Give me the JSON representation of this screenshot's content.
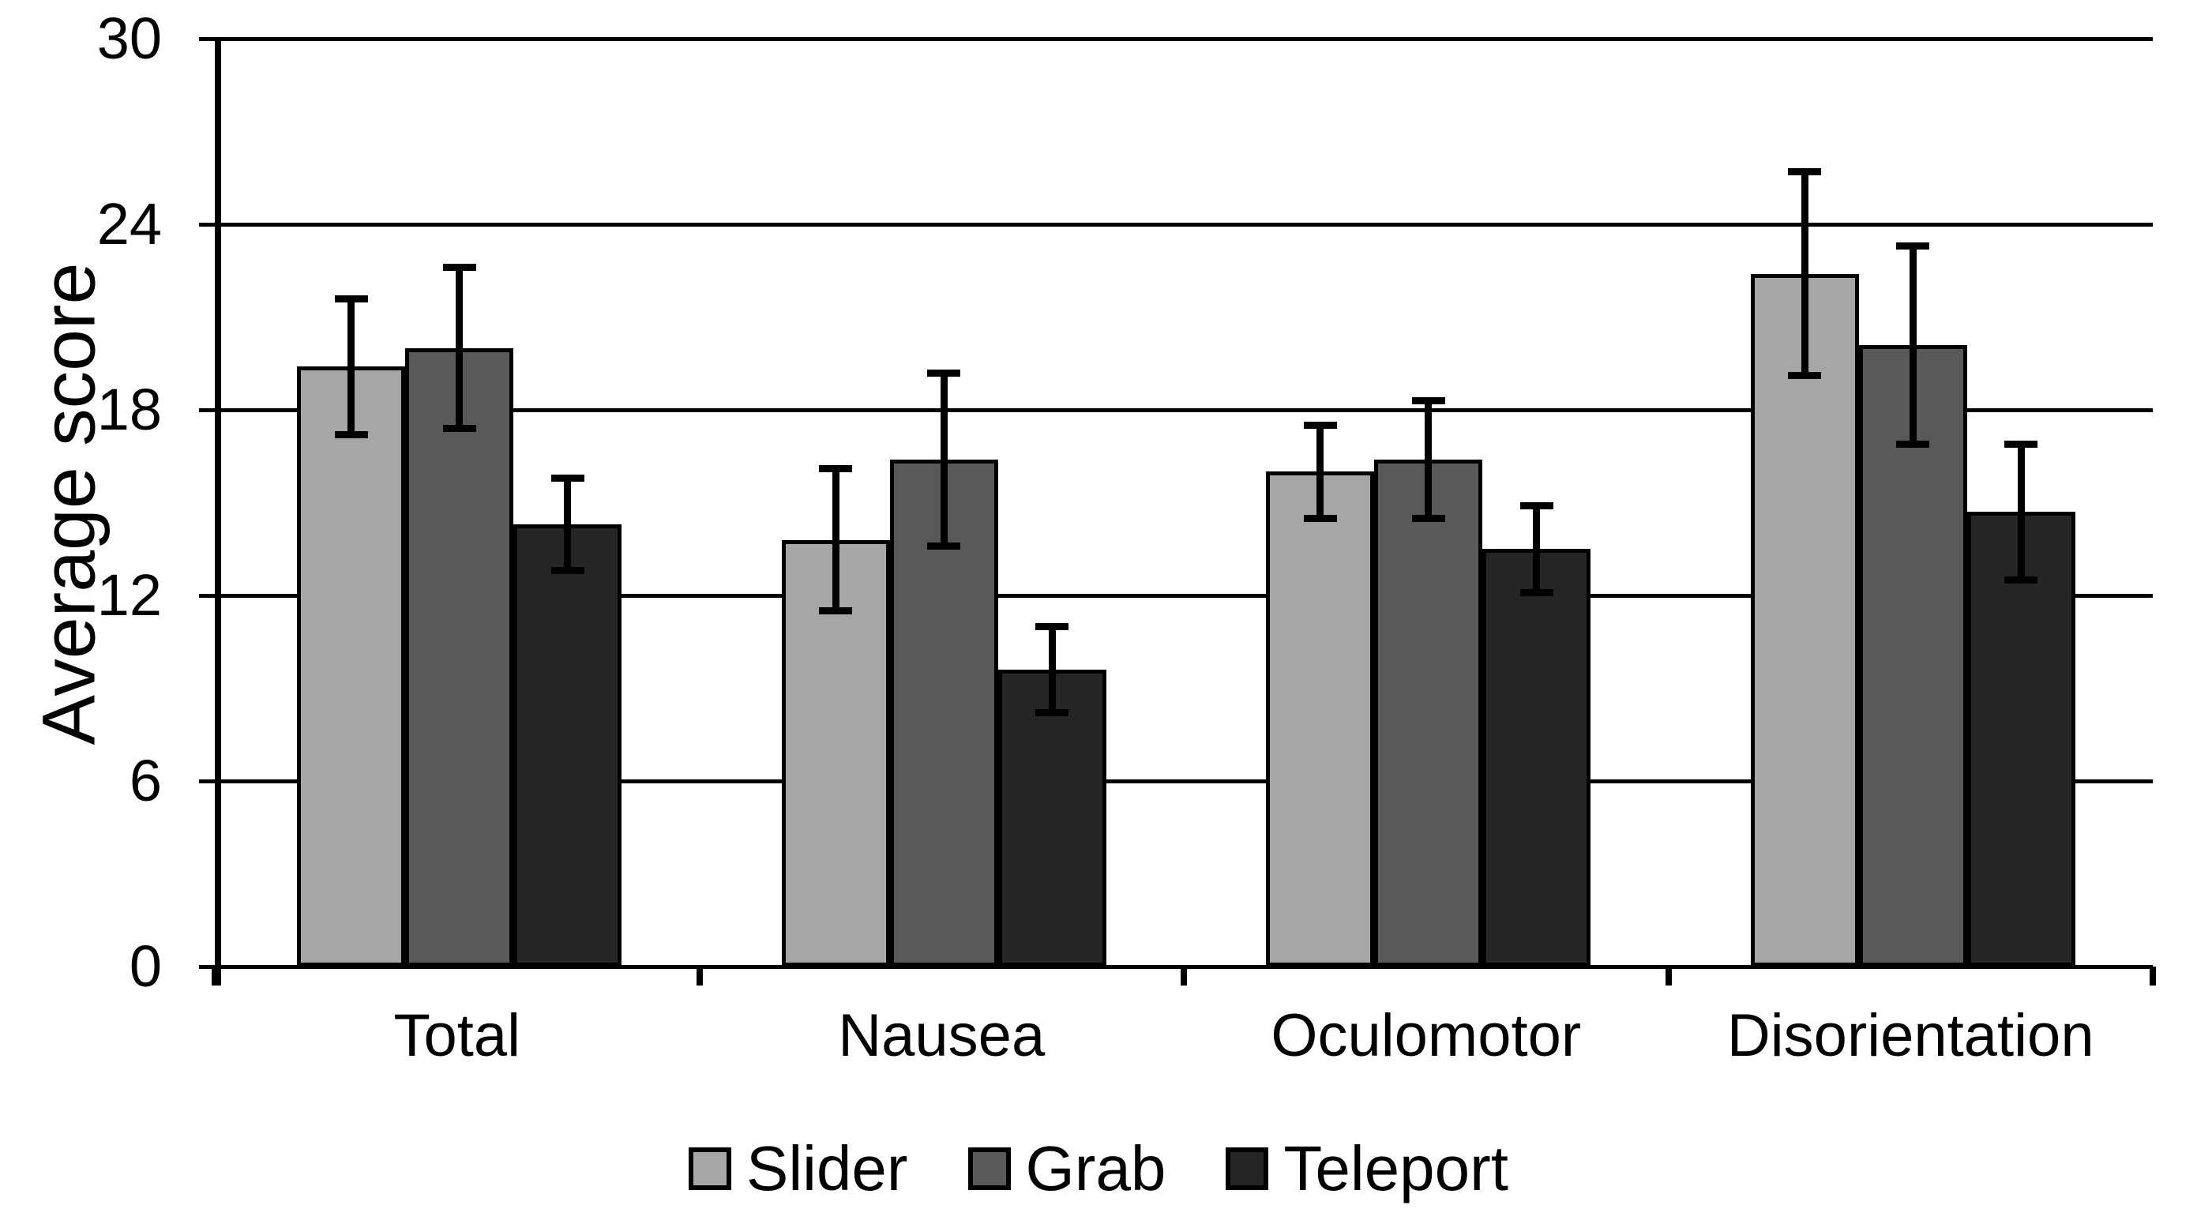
{
  "chart_data": {
    "type": "bar",
    "title": "",
    "xlabel": "",
    "ylabel": "Average score",
    "ylim": [
      0,
      30
    ],
    "ytick_step": 6,
    "yticks_top_to_bottom": [
      "30",
      "24",
      "18",
      "12",
      "6",
      "0"
    ],
    "grid": true,
    "legend_position": "bottom-center",
    "error_bars": true,
    "background_color": "#ffffff",
    "line_color": "#000000",
    "categories": [
      "Total",
      "Nausea",
      "Oculomotor",
      "Disorientation"
    ],
    "series": [
      {
        "name": "Slider",
        "color": "#a6a6a6",
        "values": [
          19.4,
          13.8,
          16.0,
          22.4
        ],
        "errors": [
          2.2,
          2.3,
          1.5,
          3.3
        ]
      },
      {
        "name": "Grab",
        "color": "#595959",
        "values": [
          20.0,
          16.4,
          16.4,
          20.1
        ],
        "errors": [
          2.6,
          2.8,
          1.9,
          3.2
        ]
      },
      {
        "name": "Teleport",
        "color": "#262626",
        "values": [
          14.3,
          9.6,
          13.5,
          14.7
        ],
        "errors": [
          1.5,
          1.4,
          1.4,
          2.2
        ]
      }
    ]
  }
}
